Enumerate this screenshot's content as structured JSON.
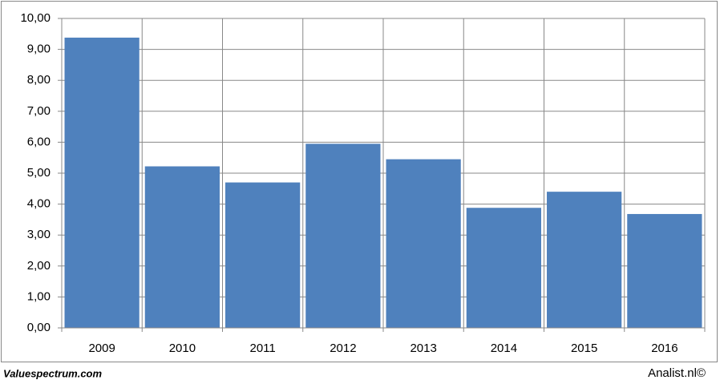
{
  "chart_data": {
    "type": "bar",
    "categories": [
      "2009",
      "2010",
      "2011",
      "2012",
      "2013",
      "2014",
      "2015",
      "2016"
    ],
    "values": [
      9.38,
      5.22,
      4.7,
      5.95,
      5.45,
      3.88,
      4.4,
      3.68
    ],
    "color": "#4f81bd",
    "ylim": [
      0,
      10
    ],
    "yticks": [
      {
        "value": 0,
        "label": "0,00"
      },
      {
        "value": 1,
        "label": "1,00"
      },
      {
        "value": 2,
        "label": "2,00"
      },
      {
        "value": 3,
        "label": "3,00"
      },
      {
        "value": 4,
        "label": "4,00"
      },
      {
        "value": 5,
        "label": "5,00"
      },
      {
        "value": 6,
        "label": "6,00"
      },
      {
        "value": 7,
        "label": "7,00"
      },
      {
        "value": 8,
        "label": "8,00"
      },
      {
        "value": 9,
        "label": "9,00"
      },
      {
        "value": 10,
        "label": "10,00"
      }
    ],
    "grid": true,
    "annotations": [
      "Valuespectrum.com",
      "Analist.nl©"
    ]
  }
}
